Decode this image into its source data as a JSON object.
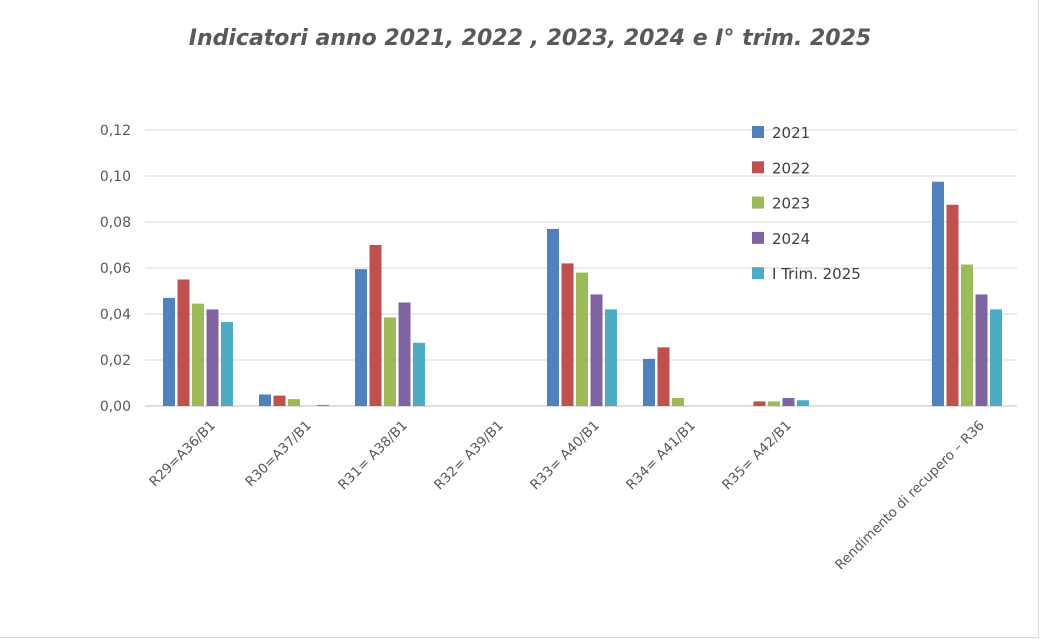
{
  "chart_data": {
    "type": "bar",
    "title": "Indicatori anno 2021, 2022 , 2023, 2024 e I° trim. 2025",
    "xlabel": "",
    "ylabel": "",
    "ylim": [
      0,
      0.12
    ],
    "yticks": [
      "0,00",
      "0,02",
      "0,04",
      "0,06",
      "0,08",
      "0,10",
      "0,12"
    ],
    "grid": true,
    "legend_position": "top-right",
    "categories": [
      "R29=A36/B1",
      "R30=A37/B1",
      "R31= A38/B1",
      "R32= A39/B1",
      "R33= A40/B1",
      "R34= A41/B1",
      "R35= A42/B1",
      "Rendimento di recupero – R36"
    ],
    "series": [
      {
        "name": "2021",
        "color": "#4f81bd",
        "values": [
          0.047,
          0.005,
          0.0595,
          0,
          0.077,
          0.0205,
          0,
          0.0975
        ]
      },
      {
        "name": "2022",
        "color": "#c0504d",
        "values": [
          0.055,
          0.0045,
          0.07,
          0,
          0.062,
          0.0255,
          0.002,
          0.0875
        ]
      },
      {
        "name": "2023",
        "color": "#9bbb59",
        "values": [
          0.0445,
          0.003,
          0.0385,
          0,
          0.058,
          0.0035,
          0.002,
          0.0615
        ]
      },
      {
        "name": "2024",
        "color": "#8064a2",
        "values": [
          0.042,
          0,
          0.045,
          0,
          0.0485,
          0,
          0.0035,
          0.0485
        ]
      },
      {
        "name": "I Trim. 2025",
        "color": "#4bacc6",
        "values": [
          0.0365,
          0.0005,
          0.0275,
          0,
          0.042,
          0,
          0.0025,
          0.042
        ]
      }
    ]
  }
}
